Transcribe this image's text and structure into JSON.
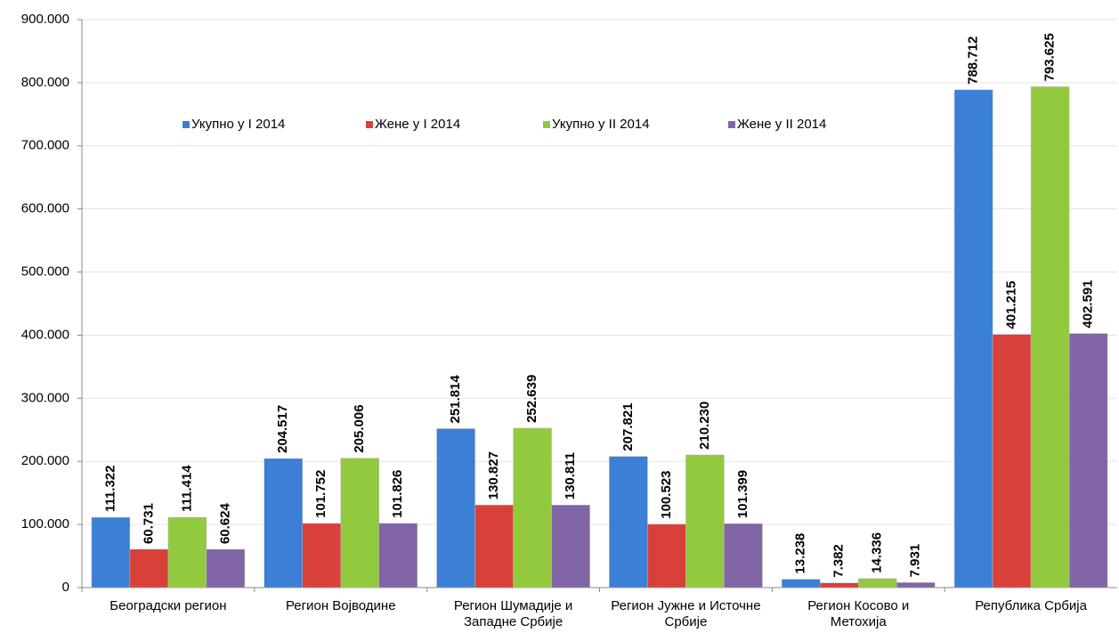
{
  "chart_data": {
    "type": "bar",
    "categories": [
      "Београдски регион",
      "Регион Војводине",
      "Регион Шумадије и Западне Србије",
      "Регион Јужне и Источне Србије",
      "Регион Косово и Метохија",
      "Република Србија"
    ],
    "series": [
      {
        "name": "Укупно у I 2014",
        "color": "#3b7fd6",
        "values": [
          111322,
          204517,
          251814,
          207821,
          13238,
          788712
        ],
        "value_labels": [
          "111.322",
          "204.517",
          "251.814",
          "207.821",
          "13.238",
          "788.712"
        ]
      },
      {
        "name": "Жене у I 2014",
        "color": "#d8403a",
        "values": [
          60731,
          101752,
          130827,
          100523,
          7382,
          401215
        ],
        "value_labels": [
          "60.731",
          "101.752",
          "130.827",
          "100.523",
          "7.382",
          "401.215"
        ]
      },
      {
        "name": "Укупно у II 2014",
        "color": "#93c93f",
        "values": [
          111414,
          205006,
          252639,
          210230,
          14336,
          793625
        ],
        "value_labels": [
          "111.414",
          "205.006",
          "252.639",
          "210.230",
          "14.336",
          "793.625"
        ]
      },
      {
        "name": "Жене у II 2014",
        "color": "#8064a6",
        "values": [
          60624,
          101826,
          130811,
          101399,
          7931,
          402591
        ],
        "value_labels": [
          "60.624",
          "101.826",
          "130.811",
          "101.399",
          "7.931",
          "402.591"
        ]
      }
    ],
    "ylim": [
      0,
      900000
    ],
    "yticks": [
      0,
      {
        "value": 100000,
        "label": "100.000"
      },
      {
        "value": 200000,
        "label": "200.000"
      },
      {
        "value": 300000,
        "label": "300.000"
      },
      {
        "value": 400000,
        "label": "400.000"
      },
      {
        "value": 500000,
        "label": "500.000"
      },
      {
        "value": 600000,
        "label": "600.000"
      },
      {
        "value": 700000,
        "label": "700.000"
      },
      {
        "value": 800000,
        "label": "800.000"
      },
      {
        "value": 900000,
        "label": "900.000"
      }
    ],
    "grid": true,
    "legend": "top"
  }
}
